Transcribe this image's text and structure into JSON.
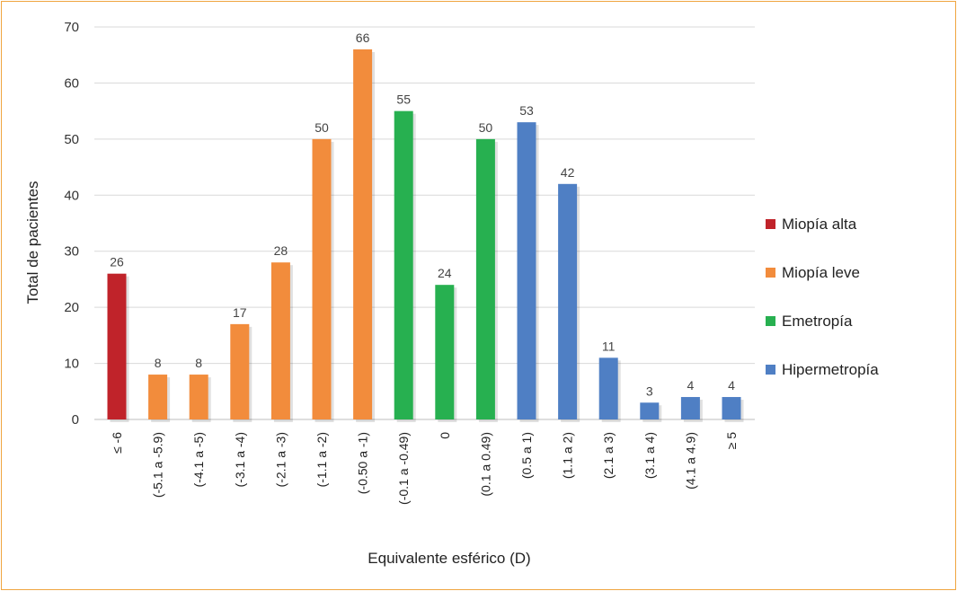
{
  "chart_data": {
    "type": "bar",
    "title": "",
    "xlabel": "Equivalente esférico (D)",
    "ylabel": "Total de pacientes",
    "ylim": [
      0,
      70
    ],
    "yticks": [
      0,
      10,
      20,
      30,
      40,
      50,
      60,
      70
    ],
    "grid": true,
    "legend_position": "right",
    "categories": [
      "≤ -6",
      "(-5.1 a -5.9)",
      "(-4.1 a -5)",
      "(-3.1 a -4)",
      "(-2.1 a -3)",
      "(-1.1 a -2)",
      "(-0.50 a -1)",
      "(-0.1 a -0.49)",
      "0",
      "(0.1 a 0.49)",
      "(0.5 a 1)",
      "(1.1 a 2)",
      "(2.1 a 3)",
      "(3.1 a 4)",
      "(4.1 a 4.9)",
      "≥ 5"
    ],
    "values": [
      26,
      8,
      8,
      17,
      28,
      50,
      66,
      55,
      24,
      50,
      53,
      42,
      11,
      3,
      4,
      4
    ],
    "groups": [
      "Miopía alta",
      "Miopía leve",
      "Miopía leve",
      "Miopía leve",
      "Miopía leve",
      "Miopía leve",
      "Miopía leve",
      "Emetropía",
      "Emetropía",
      "Emetropía",
      "Hipermetropía",
      "Hipermetropía",
      "Hipermetropía",
      "Hipermetropía",
      "Hipermetropía",
      "Hipermetropía"
    ],
    "legend": [
      {
        "name": "Miopía alta",
        "color": "#c0232a"
      },
      {
        "name": "Miopía leve",
        "color": "#f28c3c"
      },
      {
        "name": "Emetropía",
        "color": "#27b050"
      },
      {
        "name": "Hipermetropía",
        "color": "#4f7fc4"
      }
    ]
  }
}
